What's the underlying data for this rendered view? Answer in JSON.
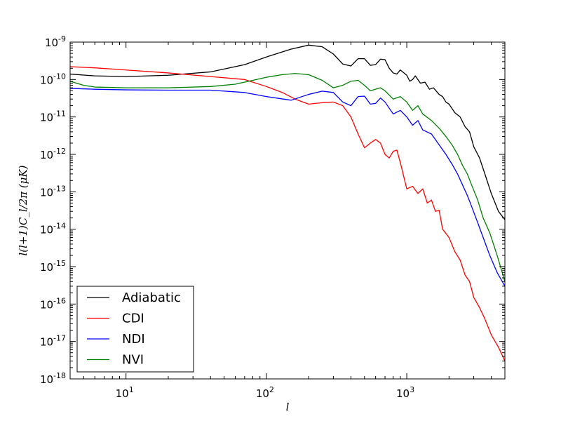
{
  "chart_data": {
    "type": "line",
    "title": "",
    "xlabel": "l",
    "ylabel": "l(l+1)C_l/2π (μK)",
    "xscale": "log",
    "yscale": "log",
    "xlim": [
      4,
      5000
    ],
    "ylim": [
      1e-18,
      1e-09
    ],
    "grid": false,
    "legend_position": "lower-left",
    "x_ticks": [
      {
        "value": 10,
        "base": "10",
        "exp": "1"
      },
      {
        "value": 100,
        "base": "10",
        "exp": "2"
      },
      {
        "value": 1000,
        "base": "10",
        "exp": "3"
      }
    ],
    "y_ticks": [
      {
        "value": 1e-09,
        "base": "10",
        "exp": "-9"
      },
      {
        "value": 1e-10,
        "base": "10",
        "exp": "-10"
      },
      {
        "value": 1e-11,
        "base": "10",
        "exp": "-11"
      },
      {
        "value": 1e-12,
        "base": "10",
        "exp": "-12"
      },
      {
        "value": 1e-13,
        "base": "10",
        "exp": "-13"
      },
      {
        "value": 1e-14,
        "base": "10",
        "exp": "-14"
      },
      {
        "value": 1e-15,
        "base": "10",
        "exp": "-15"
      },
      {
        "value": 1e-16,
        "base": "10",
        "exp": "-16"
      },
      {
        "value": 1e-17,
        "base": "10",
        "exp": "-17"
      },
      {
        "value": 1e-18,
        "base": "10",
        "exp": "-18"
      }
    ],
    "series": [
      {
        "name": "Adiabatic",
        "color": "#000000",
        "x": [
          4,
          6,
          10,
          20,
          40,
          70,
          100,
          150,
          200,
          250,
          300,
          350,
          400,
          450,
          500,
          550,
          600,
          650,
          700,
          750,
          800,
          850,
          900,
          1000,
          1050,
          1100,
          1150,
          1250,
          1350,
          1450,
          1550,
          1700,
          1800,
          1900,
          2000,
          2200,
          2400,
          2600,
          2800,
          3000,
          3300,
          3600,
          4000,
          4500,
          5000
        ],
        "y": [
          1.4e-10,
          1.25e-10,
          1.2e-10,
          1.3e-10,
          1.6e-10,
          2.5e-10,
          4e-10,
          6.5e-10,
          8.3e-10,
          7.5e-10,
          4.8e-10,
          2.6e-10,
          2.3e-10,
          3.6e-10,
          3.6e-10,
          2.4e-10,
          2.5e-10,
          3.5e-10,
          3.4e-10,
          2e-10,
          1.5e-10,
          1.4e-10,
          1.8e-10,
          1.3e-10,
          9e-11,
          1e-10,
          1.25e-10,
          8e-11,
          8.5e-11,
          5.5e-11,
          6e-11,
          4e-11,
          3.5e-11,
          2.5e-11,
          2.2e-11,
          1.3e-11,
          1e-11,
          5.5e-12,
          4e-12,
          1.6e-12,
          8e-13,
          3e-13,
          9e-14,
          3e-14,
          1.8e-14
        ]
      },
      {
        "name": "CDI",
        "color": "#ff0000",
        "x": [
          4,
          6,
          10,
          20,
          40,
          70,
          100,
          130,
          160,
          200,
          250,
          300,
          350,
          400,
          450,
          500,
          550,
          600,
          650,
          700,
          750,
          800,
          850,
          900,
          1000,
          1100,
          1200,
          1300,
          1400,
          1500,
          1600,
          1700,
          1800,
          2000,
          2200,
          2400,
          2600,
          2800,
          3000,
          3300,
          3600,
          4000,
          4500,
          5000
        ],
        "y": [
          2.2e-10,
          2.05e-10,
          1.8e-10,
          1.5e-10,
          1.2e-10,
          1e-10,
          6.5e-11,
          4.5e-11,
          3e-11,
          2.2e-11,
          2.4e-11,
          2.5e-11,
          2e-11,
          1e-11,
          3.5e-12,
          1.5e-12,
          2e-12,
          2.5e-12,
          2e-12,
          1e-12,
          8e-13,
          1.2e-12,
          1.3e-12,
          6e-13,
          1.2e-13,
          1.4e-13,
          9e-14,
          1.2e-13,
          5e-14,
          6e-14,
          3e-14,
          3.2e-14,
          1e-14,
          6e-15,
          2.5e-15,
          1.5e-15,
          6e-16,
          4e-16,
          1.5e-16,
          8e-17,
          4e-17,
          1.5e-17,
          7e-18,
          3e-18
        ]
      },
      {
        "name": "NDI",
        "color": "#0000ff",
        "x": [
          4,
          6,
          10,
          20,
          40,
          70,
          100,
          150,
          200,
          250,
          300,
          350,
          400,
          450,
          500,
          550,
          600,
          650,
          700,
          800,
          900,
          1000,
          1100,
          1200,
          1300,
          1500,
          1700,
          1900,
          2100,
          2300,
          2500,
          2700,
          2900,
          3200,
          3500,
          3900,
          4400,
          5000
        ],
        "y": [
          5.8e-11,
          5.5e-11,
          5.3e-11,
          5.2e-11,
          5.2e-11,
          4.5e-11,
          3.5e-11,
          2.8e-11,
          4e-11,
          4.9e-11,
          4.5e-11,
          2.5e-11,
          2e-11,
          3.5e-11,
          3.6e-11,
          2.2e-11,
          2.3e-11,
          3.2e-11,
          2.5e-11,
          1.2e-11,
          1.5e-11,
          1e-11,
          6e-12,
          8e-12,
          4.5e-12,
          3.5e-12,
          1.8e-12,
          1e-12,
          5.5e-13,
          3e-13,
          1.5e-13,
          8e-14,
          4e-14,
          1.5e-14,
          6e-15,
          2e-15,
          7e-16,
          3e-16
        ]
      },
      {
        "name": "NVI",
        "color": "#008000",
        "x": [
          4,
          5,
          6,
          10,
          20,
          40,
          60,
          80,
          100,
          130,
          160,
          200,
          250,
          300,
          350,
          400,
          450,
          500,
          550,
          600,
          650,
          700,
          800,
          900,
          1000,
          1100,
          1200,
          1300,
          1500,
          1700,
          1900,
          2100,
          2300,
          2500,
          2700,
          2900,
          3200,
          3500,
          3900,
          4400,
          5000
        ],
        "y": [
          9e-11,
          7e-11,
          6.3e-11,
          6e-11,
          6e-11,
          6.5e-11,
          7.5e-11,
          9.5e-11,
          1.15e-10,
          1.35e-10,
          1.45e-10,
          1.35e-10,
          9.5e-11,
          6e-11,
          7e-11,
          9e-11,
          9.5e-11,
          7e-11,
          5e-11,
          5.5e-11,
          6e-11,
          5e-11,
          3e-11,
          3.5e-11,
          2.5e-11,
          1.5e-11,
          2e-11,
          1.2e-11,
          8e-12,
          5e-12,
          3e-12,
          1.8e-12,
          1e-12,
          5e-13,
          3e-13,
          1.5e-13,
          6e-14,
          2e-14,
          8e-15,
          2e-15,
          4e-16
        ]
      }
    ]
  }
}
